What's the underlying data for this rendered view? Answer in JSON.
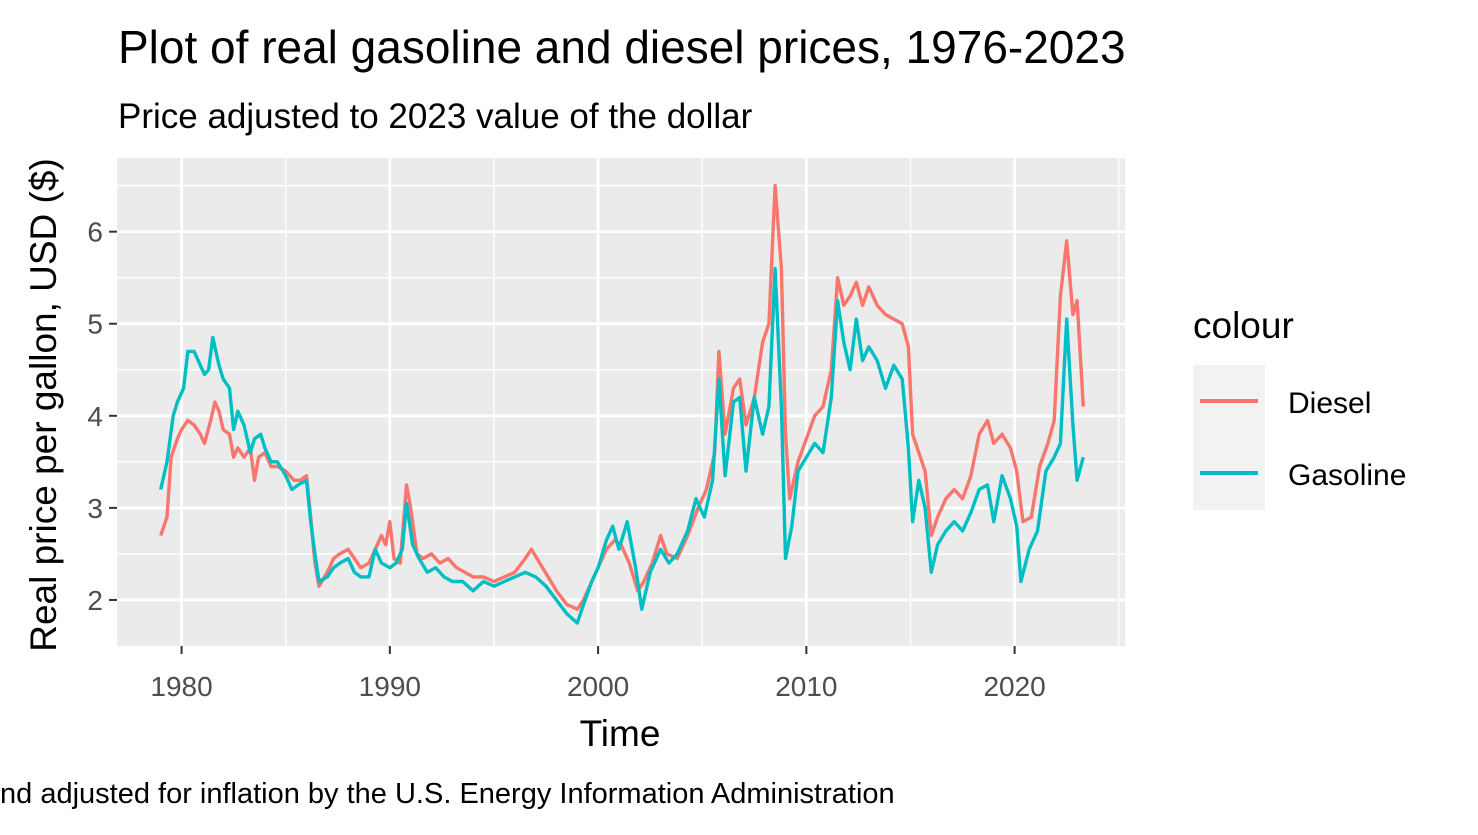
{
  "chart_data": {
    "type": "line",
    "title": "Plot of real gasoline and diesel prices, 1976-2023",
    "subtitle": "Price adjusted to 2023 value of the dollar",
    "xlabel": "Time",
    "ylabel": "Real price per gallon, USD ($)",
    "caption": "nd adjusted for inflation by the U.S. Energy Information Administration",
    "xlim": [
      1976.9,
      2025.3
    ],
    "ylim": [
      1.5,
      6.8
    ],
    "x_ticks": [
      1980,
      1990,
      2000,
      2010,
      2020
    ],
    "x_tick_labels": [
      "1980",
      "1990",
      "2000",
      "2010",
      "2020"
    ],
    "y_ticks": [
      2,
      3,
      4,
      5,
      6
    ],
    "y_tick_labels": [
      "2",
      "3",
      "4",
      "5",
      "6"
    ],
    "grid": true,
    "legend": {
      "title": "colour",
      "position": "right",
      "entries": [
        "Diesel",
        "Gasoline"
      ]
    },
    "series": [
      {
        "name": "Diesel",
        "color": "#F8766D",
        "points": [
          [
            1979.0,
            2.7
          ],
          [
            1979.3,
            2.9
          ],
          [
            1979.5,
            3.55
          ],
          [
            1979.8,
            3.75
          ],
          [
            1980.0,
            3.85
          ],
          [
            1980.3,
            3.95
          ],
          [
            1980.6,
            3.9
          ],
          [
            1980.9,
            3.8
          ],
          [
            1981.1,
            3.7
          ],
          [
            1981.4,
            3.95
          ],
          [
            1981.6,
            4.15
          ],
          [
            1981.8,
            4.05
          ],
          [
            1982.0,
            3.85
          ],
          [
            1982.3,
            3.8
          ],
          [
            1982.5,
            3.55
          ],
          [
            1982.7,
            3.65
          ],
          [
            1983.0,
            3.55
          ],
          [
            1983.3,
            3.65
          ],
          [
            1983.5,
            3.3
          ],
          [
            1983.7,
            3.55
          ],
          [
            1984.0,
            3.6
          ],
          [
            1984.3,
            3.45
          ],
          [
            1984.6,
            3.45
          ],
          [
            1985.0,
            3.4
          ],
          [
            1985.4,
            3.3
          ],
          [
            1985.7,
            3.3
          ],
          [
            1986.0,
            3.35
          ],
          [
            1986.2,
            2.9
          ],
          [
            1986.4,
            2.4
          ],
          [
            1986.6,
            2.15
          ],
          [
            1987.0,
            2.3
          ],
          [
            1987.3,
            2.45
          ],
          [
            1987.6,
            2.5
          ],
          [
            1988.0,
            2.55
          ],
          [
            1988.3,
            2.45
          ],
          [
            1988.6,
            2.35
          ],
          [
            1989.0,
            2.4
          ],
          [
            1989.3,
            2.55
          ],
          [
            1989.6,
            2.7
          ],
          [
            1989.8,
            2.6
          ],
          [
            1990.0,
            2.85
          ],
          [
            1990.2,
            2.45
          ],
          [
            1990.5,
            2.4
          ],
          [
            1990.8,
            3.25
          ],
          [
            1991.0,
            3.0
          ],
          [
            1991.3,
            2.5
          ],
          [
            1991.6,
            2.45
          ],
          [
            1992.0,
            2.5
          ],
          [
            1992.4,
            2.4
          ],
          [
            1992.8,
            2.45
          ],
          [
            1993.2,
            2.35
          ],
          [
            1993.6,
            2.3
          ],
          [
            1994.0,
            2.25
          ],
          [
            1994.5,
            2.25
          ],
          [
            1995.0,
            2.2
          ],
          [
            1995.5,
            2.25
          ],
          [
            1996.0,
            2.3
          ],
          [
            1996.5,
            2.45
          ],
          [
            1996.8,
            2.55
          ],
          [
            1997.2,
            2.4
          ],
          [
            1997.6,
            2.25
          ],
          [
            1998.0,
            2.1
          ],
          [
            1998.5,
            1.95
          ],
          [
            1999.0,
            1.9
          ],
          [
            1999.3,
            2.0
          ],
          [
            1999.7,
            2.2
          ],
          [
            2000.0,
            2.35
          ],
          [
            2000.4,
            2.55
          ],
          [
            2000.8,
            2.65
          ],
          [
            2001.1,
            2.6
          ],
          [
            2001.5,
            2.4
          ],
          [
            2001.9,
            2.1
          ],
          [
            2002.2,
            2.2
          ],
          [
            2002.6,
            2.4
          ],
          [
            2003.0,
            2.7
          ],
          [
            2003.3,
            2.5
          ],
          [
            2003.8,
            2.45
          ],
          [
            2004.3,
            2.7
          ],
          [
            2004.8,
            3.0
          ],
          [
            2005.2,
            3.2
          ],
          [
            2005.6,
            3.6
          ],
          [
            2005.8,
            4.7
          ],
          [
            2006.1,
            3.8
          ],
          [
            2006.5,
            4.3
          ],
          [
            2006.8,
            4.4
          ],
          [
            2007.1,
            3.9
          ],
          [
            2007.5,
            4.2
          ],
          [
            2007.9,
            4.8
          ],
          [
            2008.2,
            5.0
          ],
          [
            2008.5,
            6.5
          ],
          [
            2008.8,
            5.6
          ],
          [
            2009.0,
            3.8
          ],
          [
            2009.2,
            3.1
          ],
          [
            2009.6,
            3.5
          ],
          [
            2010.0,
            3.75
          ],
          [
            2010.4,
            4.0
          ],
          [
            2010.8,
            4.1
          ],
          [
            2011.2,
            4.5
          ],
          [
            2011.5,
            5.5
          ],
          [
            2011.8,
            5.2
          ],
          [
            2012.1,
            5.3
          ],
          [
            2012.4,
            5.45
          ],
          [
            2012.7,
            5.2
          ],
          [
            2013.0,
            5.4
          ],
          [
            2013.4,
            5.2
          ],
          [
            2013.8,
            5.1
          ],
          [
            2014.2,
            5.05
          ],
          [
            2014.6,
            5.0
          ],
          [
            2014.9,
            4.75
          ],
          [
            2015.1,
            3.8
          ],
          [
            2015.4,
            3.6
          ],
          [
            2015.7,
            3.4
          ],
          [
            2016.0,
            2.7
          ],
          [
            2016.3,
            2.9
          ],
          [
            2016.7,
            3.1
          ],
          [
            2017.1,
            3.2
          ],
          [
            2017.5,
            3.1
          ],
          [
            2017.9,
            3.35
          ],
          [
            2018.3,
            3.8
          ],
          [
            2018.7,
            3.95
          ],
          [
            2019.0,
            3.7
          ],
          [
            2019.4,
            3.8
          ],
          [
            2019.8,
            3.65
          ],
          [
            2020.1,
            3.4
          ],
          [
            2020.4,
            2.85
          ],
          [
            2020.8,
            2.9
          ],
          [
            2021.2,
            3.45
          ],
          [
            2021.6,
            3.7
          ],
          [
            2021.9,
            3.95
          ],
          [
            2022.2,
            5.3
          ],
          [
            2022.5,
            5.9
          ],
          [
            2022.8,
            5.1
          ],
          [
            2023.0,
            5.25
          ],
          [
            2023.3,
            4.1
          ]
        ]
      },
      {
        "name": "Gasoline",
        "color": "#00BFC4",
        "points": [
          [
            1979.0,
            3.2
          ],
          [
            1979.3,
            3.5
          ],
          [
            1979.6,
            4.0
          ],
          [
            1979.8,
            4.15
          ],
          [
            1980.1,
            4.3
          ],
          [
            1980.3,
            4.7
          ],
          [
            1980.6,
            4.7
          ],
          [
            1980.9,
            4.55
          ],
          [
            1981.1,
            4.45
          ],
          [
            1981.3,
            4.5
          ],
          [
            1981.5,
            4.85
          ],
          [
            1981.8,
            4.55
          ],
          [
            1982.0,
            4.4
          ],
          [
            1982.3,
            4.3
          ],
          [
            1982.5,
            3.85
          ],
          [
            1982.7,
            4.05
          ],
          [
            1983.0,
            3.9
          ],
          [
            1983.3,
            3.6
          ],
          [
            1983.5,
            3.75
          ],
          [
            1983.8,
            3.8
          ],
          [
            1984.0,
            3.65
          ],
          [
            1984.3,
            3.5
          ],
          [
            1984.6,
            3.5
          ],
          [
            1985.0,
            3.35
          ],
          [
            1985.3,
            3.2
          ],
          [
            1985.6,
            3.25
          ],
          [
            1986.0,
            3.3
          ],
          [
            1986.2,
            2.85
          ],
          [
            1986.4,
            2.5
          ],
          [
            1986.6,
            2.2
          ],
          [
            1987.0,
            2.25
          ],
          [
            1987.3,
            2.35
          ],
          [
            1987.6,
            2.4
          ],
          [
            1988.0,
            2.45
          ],
          [
            1988.3,
            2.3
          ],
          [
            1988.6,
            2.25
          ],
          [
            1989.0,
            2.25
          ],
          [
            1989.3,
            2.55
          ],
          [
            1989.6,
            2.4
          ],
          [
            1990.0,
            2.35
          ],
          [
            1990.3,
            2.4
          ],
          [
            1990.6,
            2.55
          ],
          [
            1990.8,
            3.05
          ],
          [
            1991.1,
            2.6
          ],
          [
            1991.4,
            2.45
          ],
          [
            1991.8,
            2.3
          ],
          [
            1992.2,
            2.35
          ],
          [
            1992.6,
            2.25
          ],
          [
            1993.0,
            2.2
          ],
          [
            1993.5,
            2.2
          ],
          [
            1994.0,
            2.1
          ],
          [
            1994.5,
            2.2
          ],
          [
            1995.0,
            2.15
          ],
          [
            1995.5,
            2.2
          ],
          [
            1996.0,
            2.25
          ],
          [
            1996.5,
            2.3
          ],
          [
            1997.0,
            2.25
          ],
          [
            1997.5,
            2.15
          ],
          [
            1998.0,
            2.0
          ],
          [
            1998.5,
            1.85
          ],
          [
            1999.0,
            1.75
          ],
          [
            1999.3,
            1.95
          ],
          [
            1999.7,
            2.2
          ],
          [
            2000.0,
            2.35
          ],
          [
            2000.4,
            2.65
          ],
          [
            2000.7,
            2.8
          ],
          [
            2001.0,
            2.55
          ],
          [
            2001.4,
            2.85
          ],
          [
            2001.8,
            2.35
          ],
          [
            2002.1,
            1.9
          ],
          [
            2002.5,
            2.3
          ],
          [
            2003.0,
            2.55
          ],
          [
            2003.4,
            2.4
          ],
          [
            2003.8,
            2.5
          ],
          [
            2004.3,
            2.75
          ],
          [
            2004.7,
            3.1
          ],
          [
            2005.1,
            2.9
          ],
          [
            2005.5,
            3.3
          ],
          [
            2005.8,
            4.4
          ],
          [
            2006.1,
            3.35
          ],
          [
            2006.5,
            4.15
          ],
          [
            2006.8,
            4.2
          ],
          [
            2007.1,
            3.4
          ],
          [
            2007.5,
            4.2
          ],
          [
            2007.9,
            3.8
          ],
          [
            2008.2,
            4.1
          ],
          [
            2008.5,
            5.6
          ],
          [
            2008.8,
            4.1
          ],
          [
            2009.0,
            2.45
          ],
          [
            2009.3,
            2.8
          ],
          [
            2009.6,
            3.4
          ],
          [
            2010.0,
            3.55
          ],
          [
            2010.4,
            3.7
          ],
          [
            2010.8,
            3.6
          ],
          [
            2011.2,
            4.2
          ],
          [
            2011.5,
            5.25
          ],
          [
            2011.8,
            4.8
          ],
          [
            2012.1,
            4.5
          ],
          [
            2012.4,
            5.05
          ],
          [
            2012.7,
            4.6
          ],
          [
            2013.0,
            4.75
          ],
          [
            2013.4,
            4.6
          ],
          [
            2013.8,
            4.3
          ],
          [
            2014.2,
            4.55
          ],
          [
            2014.6,
            4.4
          ],
          [
            2014.9,
            3.65
          ],
          [
            2015.1,
            2.85
          ],
          [
            2015.4,
            3.3
          ],
          [
            2015.7,
            3.0
          ],
          [
            2016.0,
            2.3
          ],
          [
            2016.3,
            2.6
          ],
          [
            2016.7,
            2.75
          ],
          [
            2017.1,
            2.85
          ],
          [
            2017.5,
            2.75
          ],
          [
            2017.9,
            2.95
          ],
          [
            2018.3,
            3.2
          ],
          [
            2018.7,
            3.25
          ],
          [
            2019.0,
            2.85
          ],
          [
            2019.4,
            3.35
          ],
          [
            2019.8,
            3.1
          ],
          [
            2020.1,
            2.8
          ],
          [
            2020.3,
            2.2
          ],
          [
            2020.7,
            2.55
          ],
          [
            2021.1,
            2.75
          ],
          [
            2021.5,
            3.4
          ],
          [
            2021.9,
            3.55
          ],
          [
            2022.2,
            3.7
          ],
          [
            2022.5,
            5.05
          ],
          [
            2022.8,
            3.9
          ],
          [
            2023.0,
            3.3
          ],
          [
            2023.3,
            3.55
          ]
        ]
      }
    ]
  }
}
